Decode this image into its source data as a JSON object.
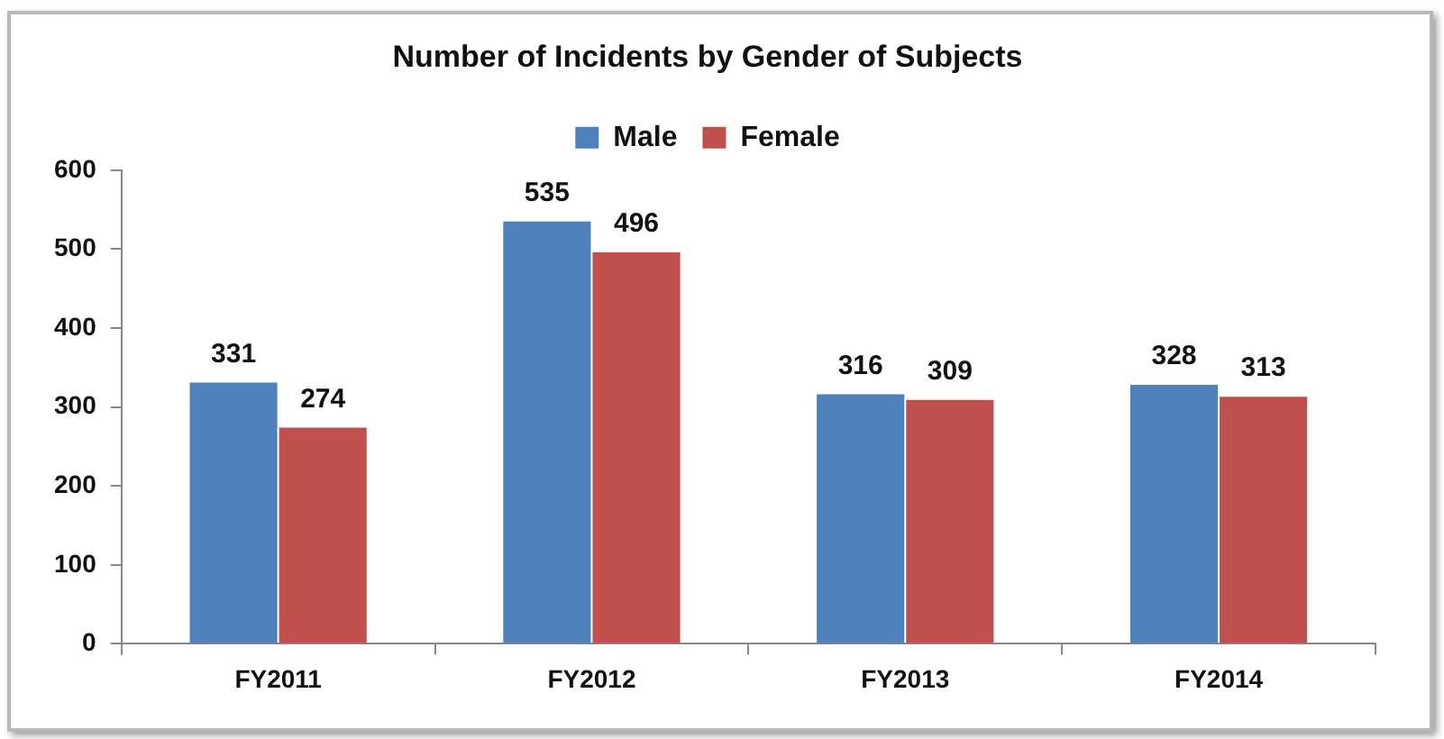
{
  "chart_data": {
    "type": "bar",
    "title": "Number of Incidents by Gender of Subjects",
    "categories": [
      "FY2011",
      "FY2012",
      "FY2013",
      "FY2014"
    ],
    "series": [
      {
        "name": "Male",
        "color": "#4f81bd",
        "values": [
          331,
          535,
          316,
          328
        ]
      },
      {
        "name": "Female",
        "color": "#c0504d",
        "values": [
          274,
          496,
          309,
          313
        ]
      }
    ],
    "ylim": [
      0,
      600
    ],
    "yticks": [
      0,
      100,
      200,
      300,
      400,
      500,
      600
    ],
    "grid": false,
    "legend": "top",
    "data_labels": true
  }
}
